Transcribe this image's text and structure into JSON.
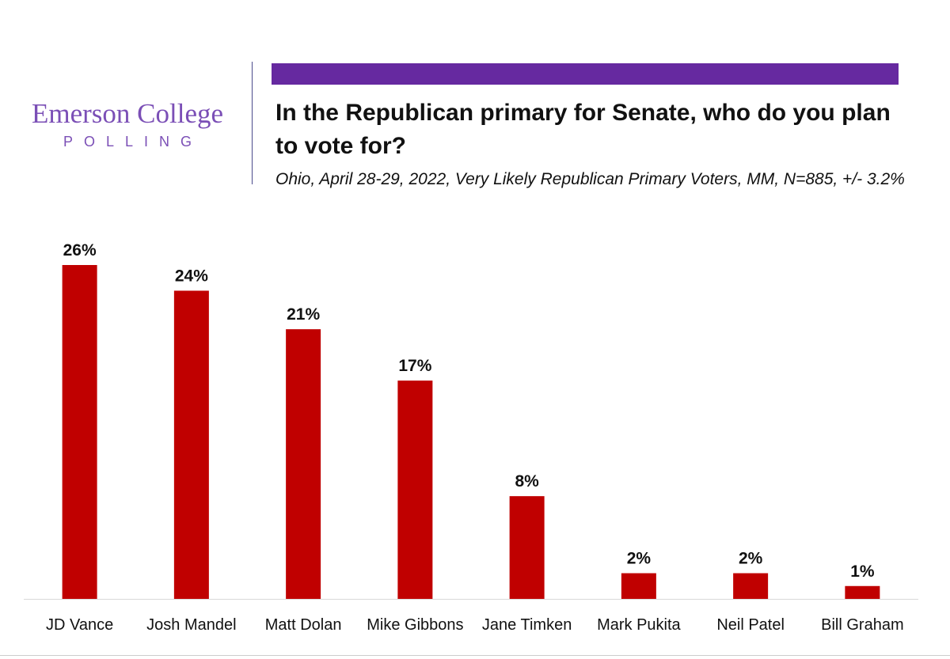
{
  "logo": {
    "line1": "Emerson College",
    "line2": "POLLING"
  },
  "colors": {
    "logo": "#7b4fb6",
    "accent_bar": "#6629a0",
    "bars": "#c00000",
    "axis": "#d9d9d9",
    "text": "#111111"
  },
  "chart_data": {
    "type": "bar",
    "title": "In the Republican primary for Senate, who do you plan to vote for?",
    "subtitle": "Ohio, April 28-29, 2022, Very Likely Republican Primary Voters, MM, N=885, +/- 3.2%",
    "categories": [
      "JD Vance",
      "Josh Mandel",
      "Matt Dolan",
      "Mike Gibbons",
      "Jane Timken",
      "Mark Pukita",
      "Neil Patel",
      "Bill Graham"
    ],
    "values": [
      26,
      24,
      21,
      17,
      8,
      2,
      2,
      1
    ],
    "data_labels": [
      "26%",
      "24%",
      "21%",
      "17%",
      "8%",
      "2%",
      "2%",
      "1%"
    ],
    "ylim": [
      0,
      26
    ],
    "grid": false,
    "legend": "none"
  }
}
